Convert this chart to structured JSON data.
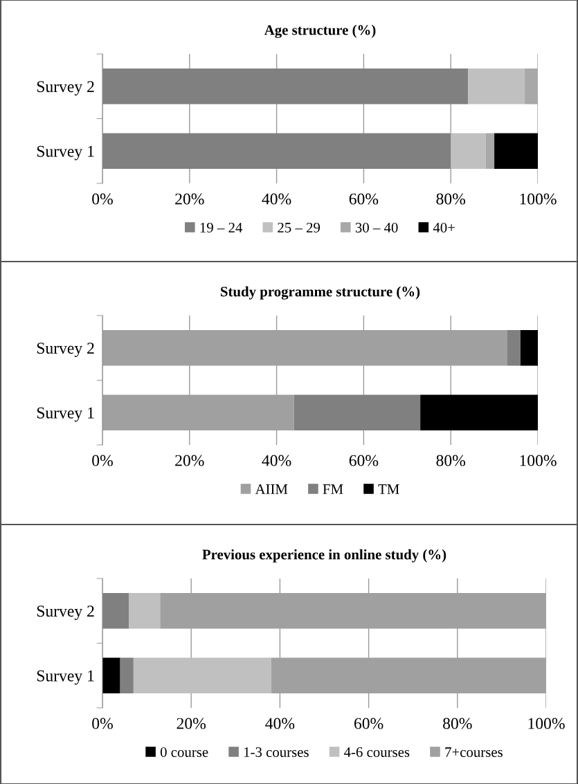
{
  "chart_data": [
    {
      "type": "bar",
      "orientation": "horizontal",
      "stacked": true,
      "title": "Age structure (%)",
      "categories": [
        "Survey 2",
        "Survey 1"
      ],
      "xlim": [
        0,
        100
      ],
      "xticks": [
        {
          "value": 0,
          "label": "0%"
        },
        {
          "value": 20,
          "label": "20%"
        },
        {
          "value": 40,
          "label": "40%"
        },
        {
          "value": 60,
          "label": "60%"
        },
        {
          "value": 80,
          "label": "80%"
        },
        {
          "value": 100,
          "label": "100%"
        }
      ],
      "grid": "x",
      "legend": "bottom",
      "series": [
        {
          "name": "19 – 24",
          "color": "#808080",
          "values": [
            84,
            80
          ]
        },
        {
          "name": "25 – 29",
          "color": "#c0c0c0",
          "values": [
            13,
            8
          ]
        },
        {
          "name": "30 – 40",
          "color": "#a8a8a8",
          "values": [
            3,
            2
          ]
        },
        {
          "name": "40+",
          "color": "#000000",
          "values": [
            0,
            10
          ]
        }
      ]
    },
    {
      "type": "bar",
      "orientation": "horizontal",
      "stacked": true,
      "title": "Study programme structure (%)",
      "categories": [
        "Survey 2",
        "Survey 1"
      ],
      "xlim": [
        0,
        100
      ],
      "xticks": [
        {
          "value": 0,
          "label": "0%"
        },
        {
          "value": 20,
          "label": "20%"
        },
        {
          "value": 40,
          "label": "40%"
        },
        {
          "value": 60,
          "label": "60%"
        },
        {
          "value": 80,
          "label": "80%"
        },
        {
          "value": 100,
          "label": "100%"
        }
      ],
      "grid": "x",
      "legend": "bottom",
      "series": [
        {
          "name": "AIIM",
          "color": "#a0a0a0",
          "values": [
            93,
            44
          ]
        },
        {
          "name": "FM",
          "color": "#808080",
          "values": [
            3,
            29
          ]
        },
        {
          "name": "TM",
          "color": "#000000",
          "values": [
            4,
            27
          ]
        }
      ]
    },
    {
      "type": "bar",
      "orientation": "horizontal",
      "stacked": true,
      "title": "Previous experience in online study (%)",
      "categories": [
        "Survey 2",
        "Survey 1"
      ],
      "xlim": [
        0,
        100
      ],
      "xticks": [
        {
          "value": 0,
          "label": "0%"
        },
        {
          "value": 20,
          "label": "20%"
        },
        {
          "value": 40,
          "label": "40%"
        },
        {
          "value": 60,
          "label": "60%"
        },
        {
          "value": 80,
          "label": "80%"
        },
        {
          "value": 100,
          "label": "100%"
        }
      ],
      "grid": "x",
      "legend": "bottom",
      "series": [
        {
          "name": "0 course",
          "color": "#000000",
          "values": [
            0,
            4
          ]
        },
        {
          "name": "1-3 courses",
          "color": "#808080",
          "values": [
            6,
            3
          ]
        },
        {
          "name": "4-6 courses",
          "color": "#c0c0c0",
          "values": [
            7,
            31
          ]
        },
        {
          "name": "7+courses",
          "color": "#a0a0a0",
          "values": [
            87,
            62
          ]
        }
      ]
    }
  ]
}
